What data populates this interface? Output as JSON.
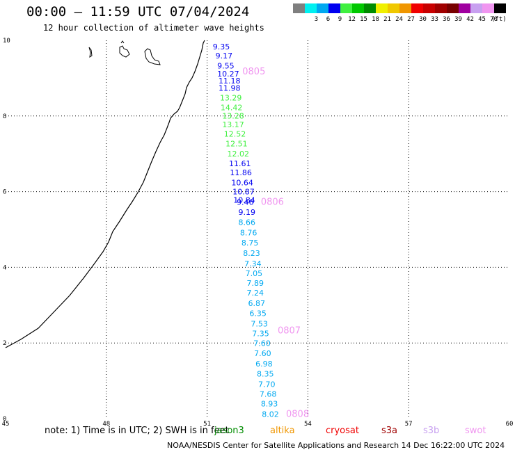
{
  "header": {
    "title": "00:00 – 11:59 UTC 07/04/2024",
    "subtitle": "12 hour collection of altimeter wave heights"
  },
  "legend": {
    "unit": "(ft)",
    "items": [
      {
        "label": "",
        "color": "#7f7f7f"
      },
      {
        "label": "3",
        "color": "#00f0f0"
      },
      {
        "label": "6",
        "color": "#00a8f0"
      },
      {
        "label": "9",
        "color": "#0000f0"
      },
      {
        "label": "12",
        "color": "#40f040"
      },
      {
        "label": "15",
        "color": "#00c800"
      },
      {
        "label": "18",
        "color": "#008c00"
      },
      {
        "label": "21",
        "color": "#f0f000"
      },
      {
        "label": "24",
        "color": "#f0c800"
      },
      {
        "label": "27",
        "color": "#f09600"
      },
      {
        "label": "30",
        "color": "#f00000"
      },
      {
        "label": "33",
        "color": "#c80000"
      },
      {
        "label": "36",
        "color": "#a00000"
      },
      {
        "label": "39",
        "color": "#780000"
      },
      {
        "label": "42",
        "color": "#a000a0"
      },
      {
        "label": "45",
        "color": "#c8a0f0"
      },
      {
        "label": "70",
        "color": "#f096f0"
      },
      {
        "label": "",
        "color": "#000000"
      }
    ]
  },
  "axes": {
    "x_ticks": [
      45,
      48,
      51,
      54,
      57,
      60
    ],
    "y_ticks": [
      0,
      2,
      4,
      6,
      8,
      10
    ],
    "xlim": [
      45,
      60
    ],
    "ylim": [
      0,
      10
    ]
  },
  "track": {
    "points": [
      {
        "v": "9.35",
        "lon": 51.17,
        "lat": 9.76,
        "color": "#0000f0"
      },
      {
        "v": "9.17",
        "lon": 51.25,
        "lat": 9.52,
        "color": "#0000f0"
      },
      {
        "v": "9.55",
        "lon": 51.3,
        "lat": 9.26,
        "color": "#0000f0"
      },
      {
        "v": "10.27",
        "lon": 51.3,
        "lat": 9.04,
        "color": "#0000f0"
      },
      {
        "v": "11.18",
        "lon": 51.34,
        "lat": 8.86,
        "color": "#0000f0"
      },
      {
        "v": "11.98",
        "lon": 51.34,
        "lat": 8.67,
        "color": "#0000f0"
      },
      {
        "v": "13.29",
        "lon": 51.38,
        "lat": 8.41,
        "color": "#40f040"
      },
      {
        "v": "14.42",
        "lon": 51.4,
        "lat": 8.15,
        "color": "#40f040"
      },
      {
        "v": "13.28",
        "lon": 51.45,
        "lat": 7.93,
        "color": "#40f040"
      },
      {
        "v": "13.17",
        "lon": 51.45,
        "lat": 7.7,
        "color": "#40f040"
      },
      {
        "v": "12.52",
        "lon": 51.5,
        "lat": 7.45,
        "color": "#40f040"
      },
      {
        "v": "12.51",
        "lon": 51.55,
        "lat": 7.2,
        "color": "#40f040"
      },
      {
        "v": "12.02",
        "lon": 51.6,
        "lat": 6.93,
        "color": "#40f040"
      },
      {
        "v": "11.61",
        "lon": 51.65,
        "lat": 6.67,
        "color": "#0000f0"
      },
      {
        "v": "11.86",
        "lon": 51.68,
        "lat": 6.43,
        "color": "#0000f0"
      },
      {
        "v": "10.64",
        "lon": 51.72,
        "lat": 6.17,
        "color": "#0000f0"
      },
      {
        "v": "10.87",
        "lon": 51.76,
        "lat": 5.93,
        "color": "#0000f0"
      },
      {
        "v": "10.84",
        "lon": 51.78,
        "lat": 5.71,
        "color": "#0000f0"
      },
      {
        "v": "9.46",
        "lon": 51.88,
        "lat": 5.65,
        "color": "#0000f0"
      },
      {
        "v": "9.19",
        "lon": 51.93,
        "lat": 5.39,
        "color": "#0000f0"
      },
      {
        "v": "8.66",
        "lon": 51.93,
        "lat": 5.12,
        "color": "#00a8f0"
      },
      {
        "v": "8.76",
        "lon": 51.98,
        "lat": 4.84,
        "color": "#00a8f0"
      },
      {
        "v": "8.75",
        "lon": 52.02,
        "lat": 4.58,
        "color": "#00a8f0"
      },
      {
        "v": "8.23",
        "lon": 52.07,
        "lat": 4.3,
        "color": "#00a8f0"
      },
      {
        "v": "7.34",
        "lon": 52.11,
        "lat": 4.03,
        "color": "#00a8f0"
      },
      {
        "v": "7.05",
        "lon": 52.14,
        "lat": 3.77,
        "color": "#00a8f0"
      },
      {
        "v": "7.89",
        "lon": 52.18,
        "lat": 3.51,
        "color": "#00a8f0"
      },
      {
        "v": "7.24",
        "lon": 52.18,
        "lat": 3.25,
        "color": "#00a8f0"
      },
      {
        "v": "6.87",
        "lon": 52.22,
        "lat": 2.98,
        "color": "#00a8f0"
      },
      {
        "v": "6.35",
        "lon": 52.26,
        "lat": 2.71,
        "color": "#00a8f0"
      },
      {
        "v": "7.53",
        "lon": 52.3,
        "lat": 2.44,
        "color": "#00a8f0"
      },
      {
        "v": "7.35",
        "lon": 52.34,
        "lat": 2.18,
        "color": "#00a8f0"
      },
      {
        "v": "7.60",
        "lon": 52.38,
        "lat": 1.92,
        "color": "#00a8f0"
      },
      {
        "v": "7.60",
        "lon": 52.4,
        "lat": 1.65,
        "color": "#00a8f0"
      },
      {
        "v": "6.98",
        "lon": 52.44,
        "lat": 1.38,
        "color": "#00a8f0"
      },
      {
        "v": "8.35",
        "lon": 52.48,
        "lat": 1.11,
        "color": "#00a8f0"
      },
      {
        "v": "7.70",
        "lon": 52.52,
        "lat": 0.84,
        "color": "#00a8f0"
      },
      {
        "v": "7.68",
        "lon": 52.56,
        "lat": 0.58,
        "color": "#00a8f0"
      },
      {
        "v": "8.93",
        "lon": 52.6,
        "lat": 0.32,
        "color": "#00a8f0"
      },
      {
        "v": "8.02",
        "lon": 52.63,
        "lat": 0.05,
        "color": "#00a8f0"
      }
    ],
    "time_labels": [
      {
        "t": "0805",
        "lon": 52.05,
        "lat": 9.1
      },
      {
        "t": "0806",
        "lon": 52.6,
        "lat": 5.65
      },
      {
        "t": "0807",
        "lon": 53.1,
        "lat": 2.25
      },
      {
        "t": "0808",
        "lon": 53.35,
        "lat": 0.05
      }
    ],
    "time_label_color": "#f096f0"
  },
  "footer": {
    "note": "note:  1) Time is in UTC; 2) SWH is in feet",
    "satellites": [
      {
        "name": "jason3",
        "color": "#008c00"
      },
      {
        "name": "altika",
        "color": "#f09600"
      },
      {
        "name": "cryosat",
        "color": "#f00000"
      },
      {
        "name": "s3a",
        "color": "#a00000"
      },
      {
        "name": "s3b",
        "color": "#c8a0f0"
      },
      {
        "name": "swot",
        "color": "#f096f0"
      }
    ],
    "credit": "NOAA/NESDIS Center for Satellite Applications and Research    14 Dec 16:22:00 UTC 2024"
  }
}
